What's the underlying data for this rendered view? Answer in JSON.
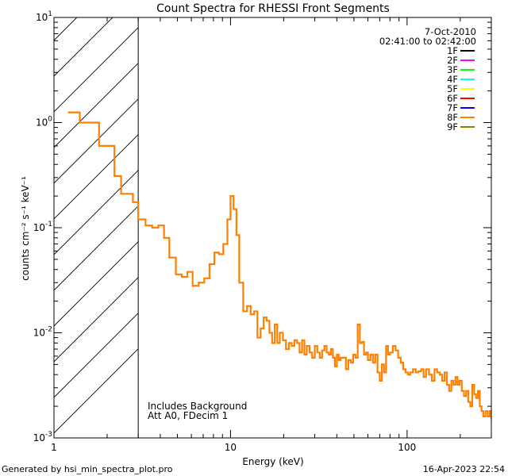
{
  "chart_data": {
    "type": "line",
    "title": "Count Spectra for RHESSI Front Segments",
    "xlabel": "Energy (keV)",
    "ylabel": "counts cm⁻² s⁻¹ keV⁻¹",
    "xscale": "log",
    "yscale": "log",
    "xlim": [
      1,
      300
    ],
    "ylim": [
      0.001,
      10
    ],
    "x_ticks": [
      {
        "value": 1,
        "label": "1"
      },
      {
        "value": 10,
        "label": "10"
      },
      {
        "value": 100,
        "label": "100"
      }
    ],
    "y_ticks": [
      {
        "value": 0.001,
        "base": "10",
        "exp": "-3"
      },
      {
        "value": 0.01,
        "base": "10",
        "exp": "-2"
      },
      {
        "value": 0.1,
        "base": "10",
        "exp": "-1"
      },
      {
        "value": 1,
        "base": "10",
        "exp": "0"
      },
      {
        "value": 10,
        "base": "10",
        "exp": "1"
      }
    ],
    "date": "7-Oct-2010",
    "time_range": "02:41:00 to 02:42:00",
    "legend": [
      {
        "name": "1F",
        "color": "#000000"
      },
      {
        "name": "2F",
        "color": "#ff00ff"
      },
      {
        "name": "3F",
        "color": "#00ff00"
      },
      {
        "name": "4F",
        "color": "#00ffff"
      },
      {
        "name": "5F",
        "color": "#ffff00"
      },
      {
        "name": "6F",
        "color": "#ff0000"
      },
      {
        "name": "7F",
        "color": "#0000ff"
      },
      {
        "name": "8F",
        "color": "#ff8000"
      },
      {
        "name": "9F",
        "color": "#808000"
      }
    ],
    "hatched_region": {
      "x_start": 1,
      "x_end": 3
    },
    "annotations": [
      "Includes Background",
      "Att A0, FDecim 1"
    ],
    "series": [
      {
        "name": "8F",
        "color": "#ff8000",
        "render": "step",
        "bin_edges": [
          1.2,
          1.4,
          1.6,
          1.8,
          2.0,
          2.2,
          2.4,
          2.6,
          2.8,
          3.0,
          3.3,
          3.6,
          3.9,
          4.2,
          4.5,
          4.9,
          5.3,
          5.7,
          6.1,
          6.6,
          7.1,
          7.6,
          8.1,
          8.6,
          9.1,
          9.6,
          10.0,
          10.4,
          10.8,
          11.2,
          11.8,
          12.4,
          13.0,
          13.6,
          14.2,
          14.8,
          15.4,
          16.0,
          16.6,
          17.2,
          17.8,
          18.4,
          19.0,
          19.8,
          20.6,
          21.4,
          22.2,
          23.0,
          23.8,
          24.6,
          25.4,
          26.2,
          27.0,
          28.0,
          29.0,
          30.0,
          31.0,
          32.0,
          33.0,
          34.0,
          35.0,
          36.0,
          37.0,
          38.0,
          39.0,
          40.0,
          41.0,
          42.0,
          43.5,
          45.0,
          46.5,
          48.0,
          49.5,
          51.0,
          52.5,
          54.0,
          55.5,
          57.0,
          58.5,
          60.0,
          62.0,
          64.0,
          66.0,
          68.0,
          70.0,
          72.0,
          74.0,
          76.0,
          78.0,
          80.0,
          83.0,
          86.0,
          89.0,
          92.0,
          95.0,
          98.0,
          101.0,
          104.0,
          108.0,
          112.0,
          116.0,
          120.0,
          124.0,
          128.0,
          133.0,
          138.0,
          143.0,
          148.0,
          153.0,
          158.0,
          163.0,
          168.0,
          173.0,
          178.0,
          183.0,
          188.0,
          193.0,
          198.0,
          204.0,
          210.0,
          216.0,
          222.0,
          228.0,
          234.0,
          240.0,
          246.0,
          252.0,
          258.0,
          264.0,
          270.0,
          278.0,
          286.0,
          294.0,
          300.0
        ],
        "values": [
          1.25,
          1.0,
          1.0,
          0.6,
          0.6,
          0.31,
          0.21,
          0.21,
          0.175,
          0.12,
          0.105,
          0.1,
          0.105,
          0.08,
          0.052,
          0.036,
          0.034,
          0.038,
          0.028,
          0.03,
          0.033,
          0.045,
          0.058,
          0.056,
          0.07,
          0.12,
          0.2,
          0.15,
          0.085,
          0.03,
          0.016,
          0.018,
          0.015,
          0.016,
          0.009,
          0.011,
          0.014,
          0.013,
          0.01,
          0.008,
          0.012,
          0.008,
          0.01,
          0.0085,
          0.007,
          0.008,
          0.0075,
          0.0085,
          0.008,
          0.0065,
          0.0085,
          0.0062,
          0.0075,
          0.0065,
          0.0058,
          0.0075,
          0.0065,
          0.0058,
          0.0068,
          0.0075,
          0.0065,
          0.0062,
          0.007,
          0.0058,
          0.0048,
          0.0062,
          0.0055,
          0.0058,
          0.0058,
          0.0045,
          0.0055,
          0.0052,
          0.0062,
          0.0058,
          0.012,
          0.008,
          0.0082,
          0.0062,
          0.0065,
          0.0055,
          0.0062,
          0.0052,
          0.0062,
          0.0042,
          0.0035,
          0.005,
          0.0042,
          0.0075,
          0.0062,
          0.0065,
          0.0075,
          0.0068,
          0.0058,
          0.0052,
          0.0045,
          0.0042,
          0.004,
          0.0042,
          0.0045,
          0.0042,
          0.0043,
          0.0045,
          0.0038,
          0.0045,
          0.004,
          0.0035,
          0.0045,
          0.0042,
          0.004,
          0.0035,
          0.0042,
          0.0032,
          0.0028,
          0.0035,
          0.0032,
          0.0038,
          0.0032,
          0.0035,
          0.0028,
          0.0025,
          0.0028,
          0.0022,
          0.002,
          0.0032,
          0.0026,
          0.0024,
          0.0028,
          0.002,
          0.0018,
          0.0016,
          0.0018,
          0.0016,
          0.0018,
          0.0015
        ]
      }
    ]
  },
  "footer": {
    "generated_by": "Generated by hsi_min_spectra_plot.pro",
    "timestamp": "16-Apr-2023 22:54"
  }
}
